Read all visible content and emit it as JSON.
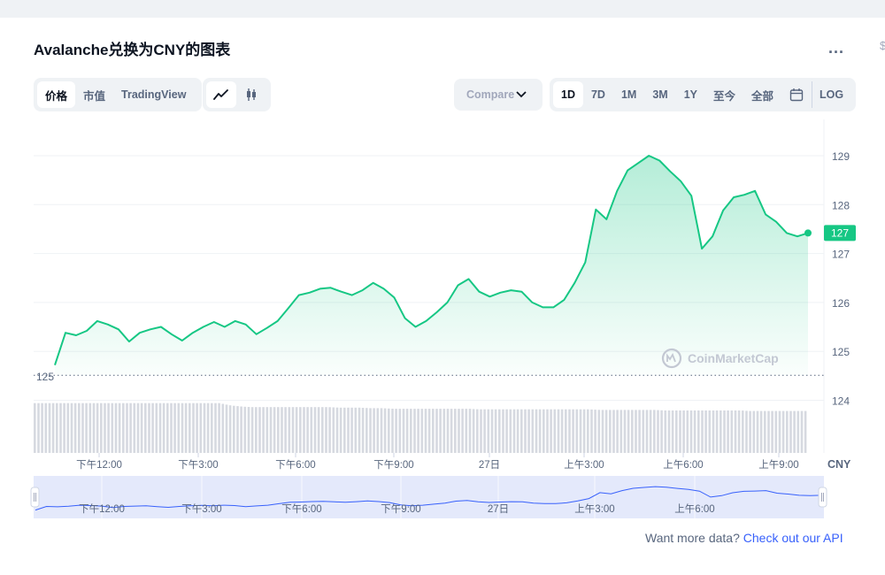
{
  "title": "Avalanche兑换为CNY的图表",
  "more_label": "...",
  "tabs": [
    {
      "label": "价格",
      "active": true
    },
    {
      "label": "市值",
      "active": false
    },
    {
      "label": "TradingView",
      "active": false
    }
  ],
  "chart_type_icons": [
    "line-chart-icon",
    "candlestick-icon"
  ],
  "compare": {
    "label": "Compare"
  },
  "ranges": [
    {
      "label": "1D",
      "active": true
    },
    {
      "label": "7D",
      "active": false
    },
    {
      "label": "1M",
      "active": false
    },
    {
      "label": "3M",
      "active": false
    },
    {
      "label": "1Y",
      "active": false
    },
    {
      "label": "至今",
      "active": false
    },
    {
      "label": "全部",
      "active": false
    }
  ],
  "log_label": "LOG",
  "footer": {
    "text": "Want more data?",
    "link": "Check out our API"
  },
  "chart_data": {
    "type": "area",
    "currency_label": "CNY",
    "y_ticks": [
      129,
      128,
      127,
      126,
      125,
      124
    ],
    "ylim": [
      123,
      130
    ],
    "current_price_label": "127",
    "reference_price_label": "125",
    "x_ticks": [
      "下午12:00",
      "下午3:00",
      "下午6:00",
      "下午9:00",
      "27日",
      "上午3:00",
      "上午6:00",
      "上午9:00"
    ],
    "navigator_ticks": [
      "下午12:00",
      "下午3:00",
      "下午6:00",
      "下午9:00",
      "27日",
      "上午3:00",
      "上午6:00"
    ],
    "watermark": "CoinMarketCap",
    "price_series": [
      124.72,
      125.38,
      125.33,
      125.42,
      125.62,
      125.55,
      125.45,
      125.2,
      125.38,
      125.45,
      125.5,
      125.35,
      125.22,
      125.38,
      125.5,
      125.6,
      125.5,
      125.62,
      125.55,
      125.35,
      125.48,
      125.62,
      125.88,
      126.15,
      126.2,
      126.28,
      126.3,
      126.22,
      126.15,
      126.25,
      126.4,
      126.28,
      126.1,
      125.68,
      125.5,
      125.62,
      125.8,
      126.0,
      126.35,
      126.48,
      126.22,
      126.12,
      126.2,
      126.25,
      126.22,
      126.0,
      125.9,
      125.9,
      126.05,
      126.4,
      126.82,
      127.9,
      127.7,
      128.28,
      128.7,
      128.85,
      129.0,
      128.9,
      128.68,
      128.48,
      128.18,
      127.1,
      127.35,
      127.88,
      128.15,
      128.2,
      128.28,
      127.8,
      127.65,
      127.42,
      127.35,
      127.42
    ],
    "volume_series": [
      0.88,
      0.88,
      0.88,
      0.88,
      0.88,
      0.88,
      0.88,
      0.88,
      0.88,
      0.88,
      0.88,
      0.88,
      0.88,
      0.88,
      0.88,
      0.88,
      0.88,
      0.88,
      0.84,
      0.82,
      0.81,
      0.81,
      0.81,
      0.81,
      0.81,
      0.81,
      0.81,
      0.81,
      0.8,
      0.8,
      0.8,
      0.79,
      0.79,
      0.78,
      0.78,
      0.78,
      0.78,
      0.78,
      0.78,
      0.78,
      0.78,
      0.77,
      0.77,
      0.77,
      0.77,
      0.77,
      0.77,
      0.77,
      0.77,
      0.77,
      0.77,
      0.77,
      0.76,
      0.76,
      0.76,
      0.76,
      0.76,
      0.76,
      0.75,
      0.75,
      0.75,
      0.75,
      0.75,
      0.75,
      0.75,
      0.75,
      0.74,
      0.74,
      0.74,
      0.74,
      0.74,
      0.74
    ]
  },
  "colors": {
    "line": "#16c784",
    "area_top": "#16c784",
    "price_badge": "#16c784",
    "volume": "#d6d9e0",
    "navigator_fill": "#e4e9fb",
    "navigator_line": "#3861fb",
    "link": "#3861fb"
  }
}
